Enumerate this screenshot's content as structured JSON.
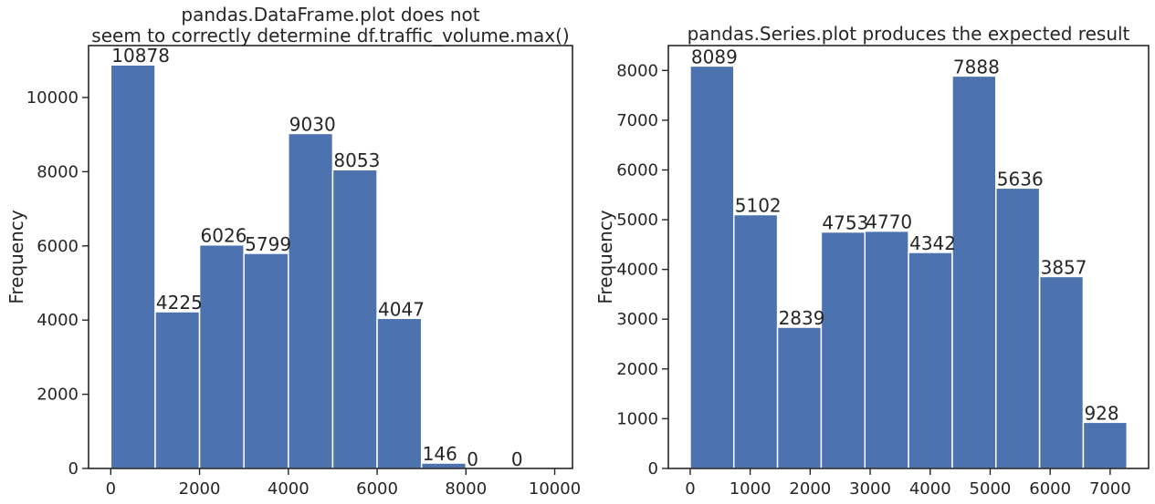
{
  "figure": {
    "background": "#ffffff",
    "bar_color": "#4c72b0",
    "bar_edge_color": "#ffffff",
    "axes_color": "#262626"
  },
  "chart_data": [
    {
      "type": "bar",
      "title_lines": [
        "pandas.DataFrame.plot does not",
        "seem to correctly determine df.traffic_volume.max()"
      ],
      "xlabel": "",
      "ylabel": "Frequency",
      "xlim": [
        -500,
        10400
      ],
      "ylim": [
        0,
        11400
      ],
      "xticks": [
        0,
        2000,
        4000,
        6000,
        8000,
        10000
      ],
      "yticks": [
        0,
        2000,
        4000,
        6000,
        8000,
        10000
      ],
      "bin_edges": [
        0,
        1000,
        2000,
        3000,
        4000,
        5000,
        6000,
        7000,
        8000,
        9000,
        10000
      ],
      "values": [
        10878,
        4225,
        6026,
        5799,
        9030,
        8053,
        4047,
        146,
        0,
        0
      ],
      "bar_labels": [
        "10878",
        "4225",
        "6026",
        "5799",
        "9030",
        "8053",
        "4047",
        "146",
        "0",
        "0"
      ]
    },
    {
      "type": "bar",
      "title_lines": [
        "pandas.Series.plot produces the expected result"
      ],
      "xlabel": "",
      "ylabel": "Frequency",
      "xlim": [
        -364,
        7641
      ],
      "ylim": [
        0,
        8500
      ],
      "xticks": [
        0,
        1000,
        2000,
        3000,
        4000,
        5000,
        6000,
        7000
      ],
      "yticks": [
        0,
        1000,
        2000,
        3000,
        4000,
        5000,
        6000,
        7000,
        8000
      ],
      "bin_edges": [
        0,
        728,
        1456,
        2184,
        2912,
        3640,
        4368,
        5096,
        5824,
        6552,
        7280
      ],
      "values": [
        8089,
        5102,
        2839,
        4753,
        4770,
        4342,
        7888,
        5636,
        3857,
        928
      ],
      "bar_labels": [
        "8089",
        "5102",
        "2839",
        "4753",
        "4770",
        "4342",
        "7888",
        "5636",
        "3857",
        "928"
      ]
    }
  ]
}
